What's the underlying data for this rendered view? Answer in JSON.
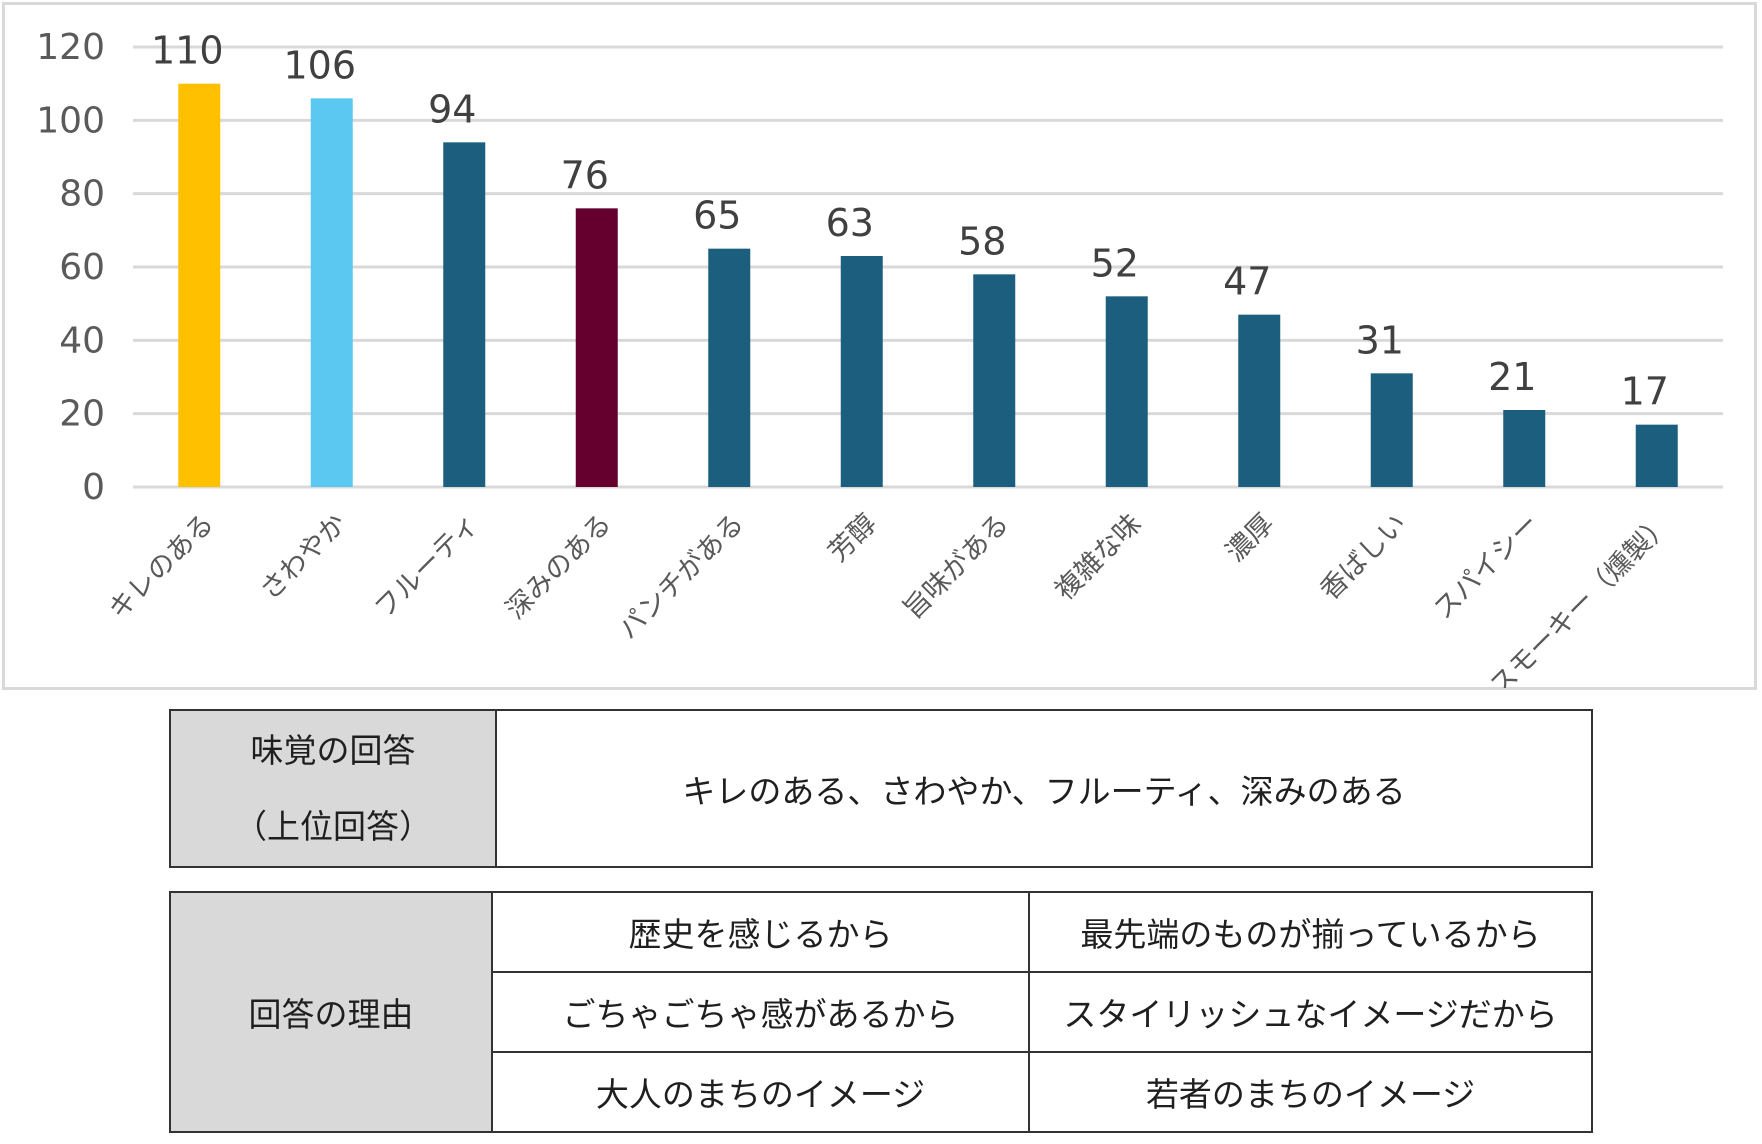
{
  "chart_data": {
    "type": "bar",
    "categories": [
      "キレのある",
      "さわやか",
      "フルーティ",
      "深みのある",
      "パンチがある",
      "芳醇",
      "旨味がある",
      "複雑な味",
      "濃厚",
      "香ばしい",
      "スパイシー",
      "スモーキー（燻製）"
    ],
    "values": [
      110,
      106,
      94,
      76,
      65,
      63,
      58,
      52,
      47,
      31,
      21,
      17
    ],
    "colors": [
      "#FFC000",
      "#5BC8F2",
      "#1B5E7E",
      "#65002E",
      "#1B5E7E",
      "#1B5E7E",
      "#1B5E7E",
      "#1B5E7E",
      "#1B5E7E",
      "#1B5E7E",
      "#1B5E7E",
      "#1B5E7E"
    ],
    "yticks": [
      0,
      20,
      40,
      60,
      80,
      100,
      120
    ],
    "ylim": [
      0,
      120
    ],
    "grid": true,
    "title": "",
    "xlabel": "",
    "ylabel": ""
  },
  "taste_table": {
    "header_line1": "味覚の回答",
    "header_line2": "（上位回答）",
    "answer": "キレのある、さわやか、フルーティ、深みのある"
  },
  "reason_table": {
    "header": "回答の理由",
    "rows": [
      [
        "歴史を感じるから",
        "最先端のものが揃っているから"
      ],
      [
        "ごちゃごちゃ感があるから",
        "スタイリッシュなイメージだから"
      ],
      [
        "大人のまちのイメージ",
        "若者のまちのイメージ"
      ]
    ]
  }
}
